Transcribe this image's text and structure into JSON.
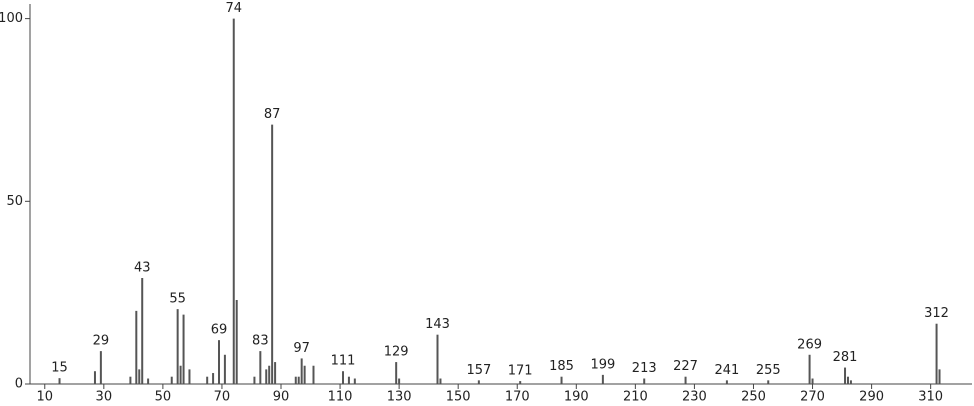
{
  "chart_data": {
    "type": "stick",
    "x": [
      15,
      27,
      29,
      39,
      41,
      42,
      43,
      45,
      53,
      55,
      56,
      57,
      59,
      65,
      67,
      69,
      71,
      74,
      75,
      81,
      83,
      85,
      86,
      87,
      88,
      95,
      96,
      97,
      98,
      101,
      111,
      113,
      115,
      129,
      130,
      143,
      144,
      157,
      171,
      185,
      199,
      213,
      227,
      241,
      255,
      269,
      270,
      281,
      282,
      283,
      312,
      313
    ],
    "values": [
      1.6,
      3.5,
      9,
      2,
      20,
      4,
      29,
      1.5,
      2,
      20.5,
      5,
      19,
      4,
      2,
      3,
      12,
      8,
      100,
      23,
      2,
      9,
      4,
      5,
      71,
      6,
      2,
      2,
      7,
      5,
      5,
      3.5,
      2,
      1.5,
      6,
      1.5,
      13.5,
      1.5,
      1,
      0.8,
      2,
      2.5,
      1.5,
      2,
      1,
      1,
      8,
      1.5,
      4.5,
      2,
      1,
      16.5,
      4
    ],
    "annotations": [
      15,
      29,
      43,
      55,
      69,
      74,
      83,
      87,
      97,
      111,
      129,
      143,
      157,
      171,
      185,
      199,
      213,
      227,
      241,
      255,
      269,
      281,
      312
    ],
    "color": "#555555",
    "xlim": [
      5,
      324
    ],
    "ylim": [
      0,
      104
    ],
    "xticks": [
      10,
      30,
      50,
      70,
      90,
      110,
      130,
      150,
      170,
      190,
      210,
      230,
      250,
      270,
      290,
      310
    ],
    "yticks": [
      0,
      50,
      100
    ]
  }
}
